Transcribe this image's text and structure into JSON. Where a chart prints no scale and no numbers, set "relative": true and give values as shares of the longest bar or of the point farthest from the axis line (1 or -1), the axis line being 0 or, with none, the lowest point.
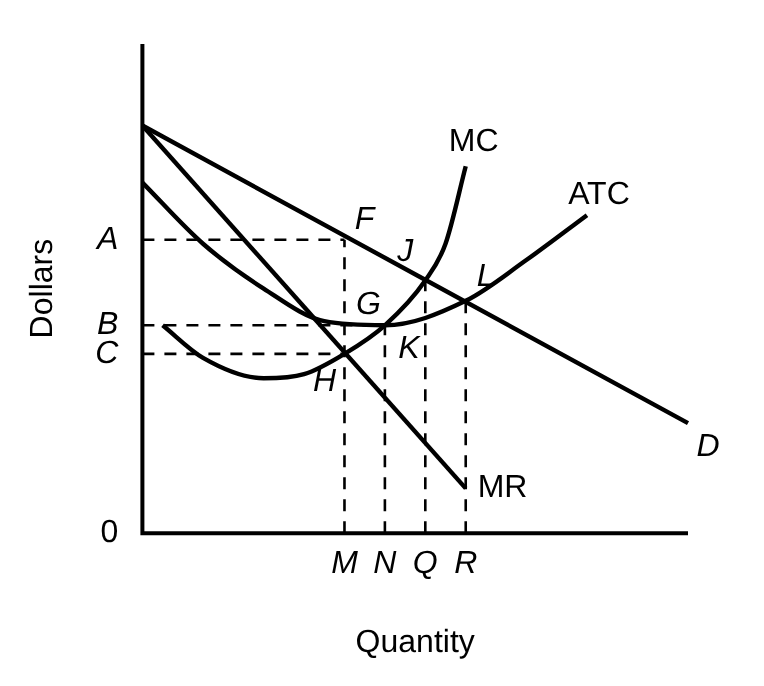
{
  "chart_data": {
    "type": "line",
    "relative": true,
    "xlabel": "Quantity",
    "ylabel": "Dollars",
    "categories": [
      null,
      null,
      null,
      null,
      null,
      null,
      null,
      null,
      null,
      null,
      "M",
      null,
      "N",
      null,
      "Q",
      null,
      "R",
      null,
      null,
      null,
      null,
      null,
      null,
      null,
      null,
      null,
      null,
      null
    ],
    "series": [
      {
        "name": "MC",
        "color": "#000000",
        "values": [
          null,
          0.51,
          null,
          0.43,
          null,
          null,
          0.38,
          null,
          0.39,
          null,
          0.44,
          null,
          0.51,
          null,
          0.62,
          0.71,
          0.9,
          null,
          null,
          null,
          null,
          null,
          null,
          null,
          null,
          null,
          null,
          null
        ]
      },
      {
        "name": "ATC",
        "color": "#000000",
        "values": [
          0.86,
          null,
          null,
          0.71,
          null,
          null,
          0.6,
          null,
          null,
          0.52,
          null,
          null,
          0.51,
          null,
          null,
          null,
          0.57,
          null,
          null,
          0.67,
          null,
          null,
          0.78,
          null,
          null,
          null,
          null,
          null
        ]
      },
      {
        "name": "D",
        "color": "#000000",
        "values": [
          1,
          null,
          null,
          null,
          null,
          null,
          null,
          null,
          null,
          null,
          null,
          null,
          null,
          null,
          null,
          null,
          null,
          null,
          null,
          null,
          null,
          null,
          null,
          null,
          null,
          null,
          null,
          0.27
        ]
      },
      {
        "name": "MR",
        "color": "#000000",
        "values": [
          1,
          null,
          null,
          null,
          null,
          null,
          null,
          null,
          null,
          null,
          null,
          null,
          null,
          null,
          null,
          null,
          0.11,
          null,
          null,
          null,
          null,
          null,
          null,
          null,
          null,
          null,
          null,
          null
        ]
      }
    ],
    "annotations": [
      {
        "text": "F",
        "x": "M",
        "y": 0.72
      },
      {
        "text": "G",
        "x": "M",
        "y": 0.52
      },
      {
        "text": "H",
        "x": "M",
        "y": 0.44
      },
      {
        "text": "J",
        "x": "Q",
        "y": 0.62
      },
      {
        "text": "K",
        "x": "N",
        "y": 0.51
      },
      {
        "text": "L",
        "x": "R",
        "y": 0.57
      },
      "0",
      "A",
      "B",
      "C"
    ],
    "legend": false,
    "grid": "x",
    "marker": "none",
    "line_style": "solid"
  }
}
